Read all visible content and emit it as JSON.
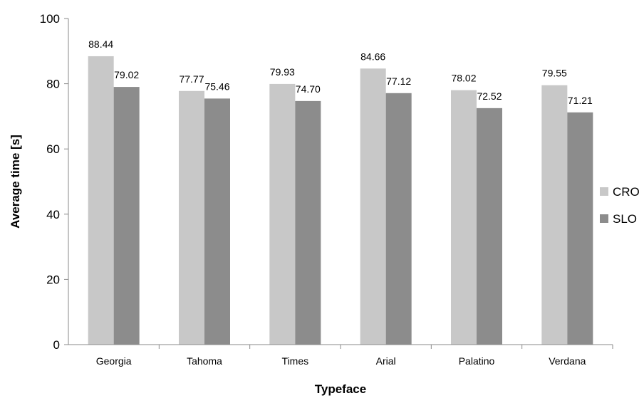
{
  "chart_data": {
    "type": "bar",
    "title": "",
    "xlabel": "Typeface",
    "ylabel": "Average time [s]",
    "ylim": [
      0,
      100
    ],
    "yticks": [
      0,
      20,
      40,
      60,
      80,
      100
    ],
    "grid": false,
    "legend_position": "right",
    "categories": [
      "Georgia",
      "Tahoma",
      "Times",
      "Arial",
      "Palatino",
      "Verdana"
    ],
    "series": [
      {
        "name": "CRO",
        "color": "#c8c8c8",
        "values": [
          88.44,
          77.77,
          79.93,
          84.66,
          78.02,
          79.55
        ],
        "labels": [
          "88.44",
          "77.77",
          "79.93",
          "84.66",
          "78.02",
          "79.55"
        ]
      },
      {
        "name": "SLO",
        "color": "#8c8c8c",
        "values": [
          79.02,
          75.46,
          74.7,
          77.12,
          72.52,
          71.21
        ],
        "labels": [
          "79.02",
          "75.46",
          "74.70",
          "77.12",
          "72.52",
          "71.21"
        ]
      }
    ]
  }
}
